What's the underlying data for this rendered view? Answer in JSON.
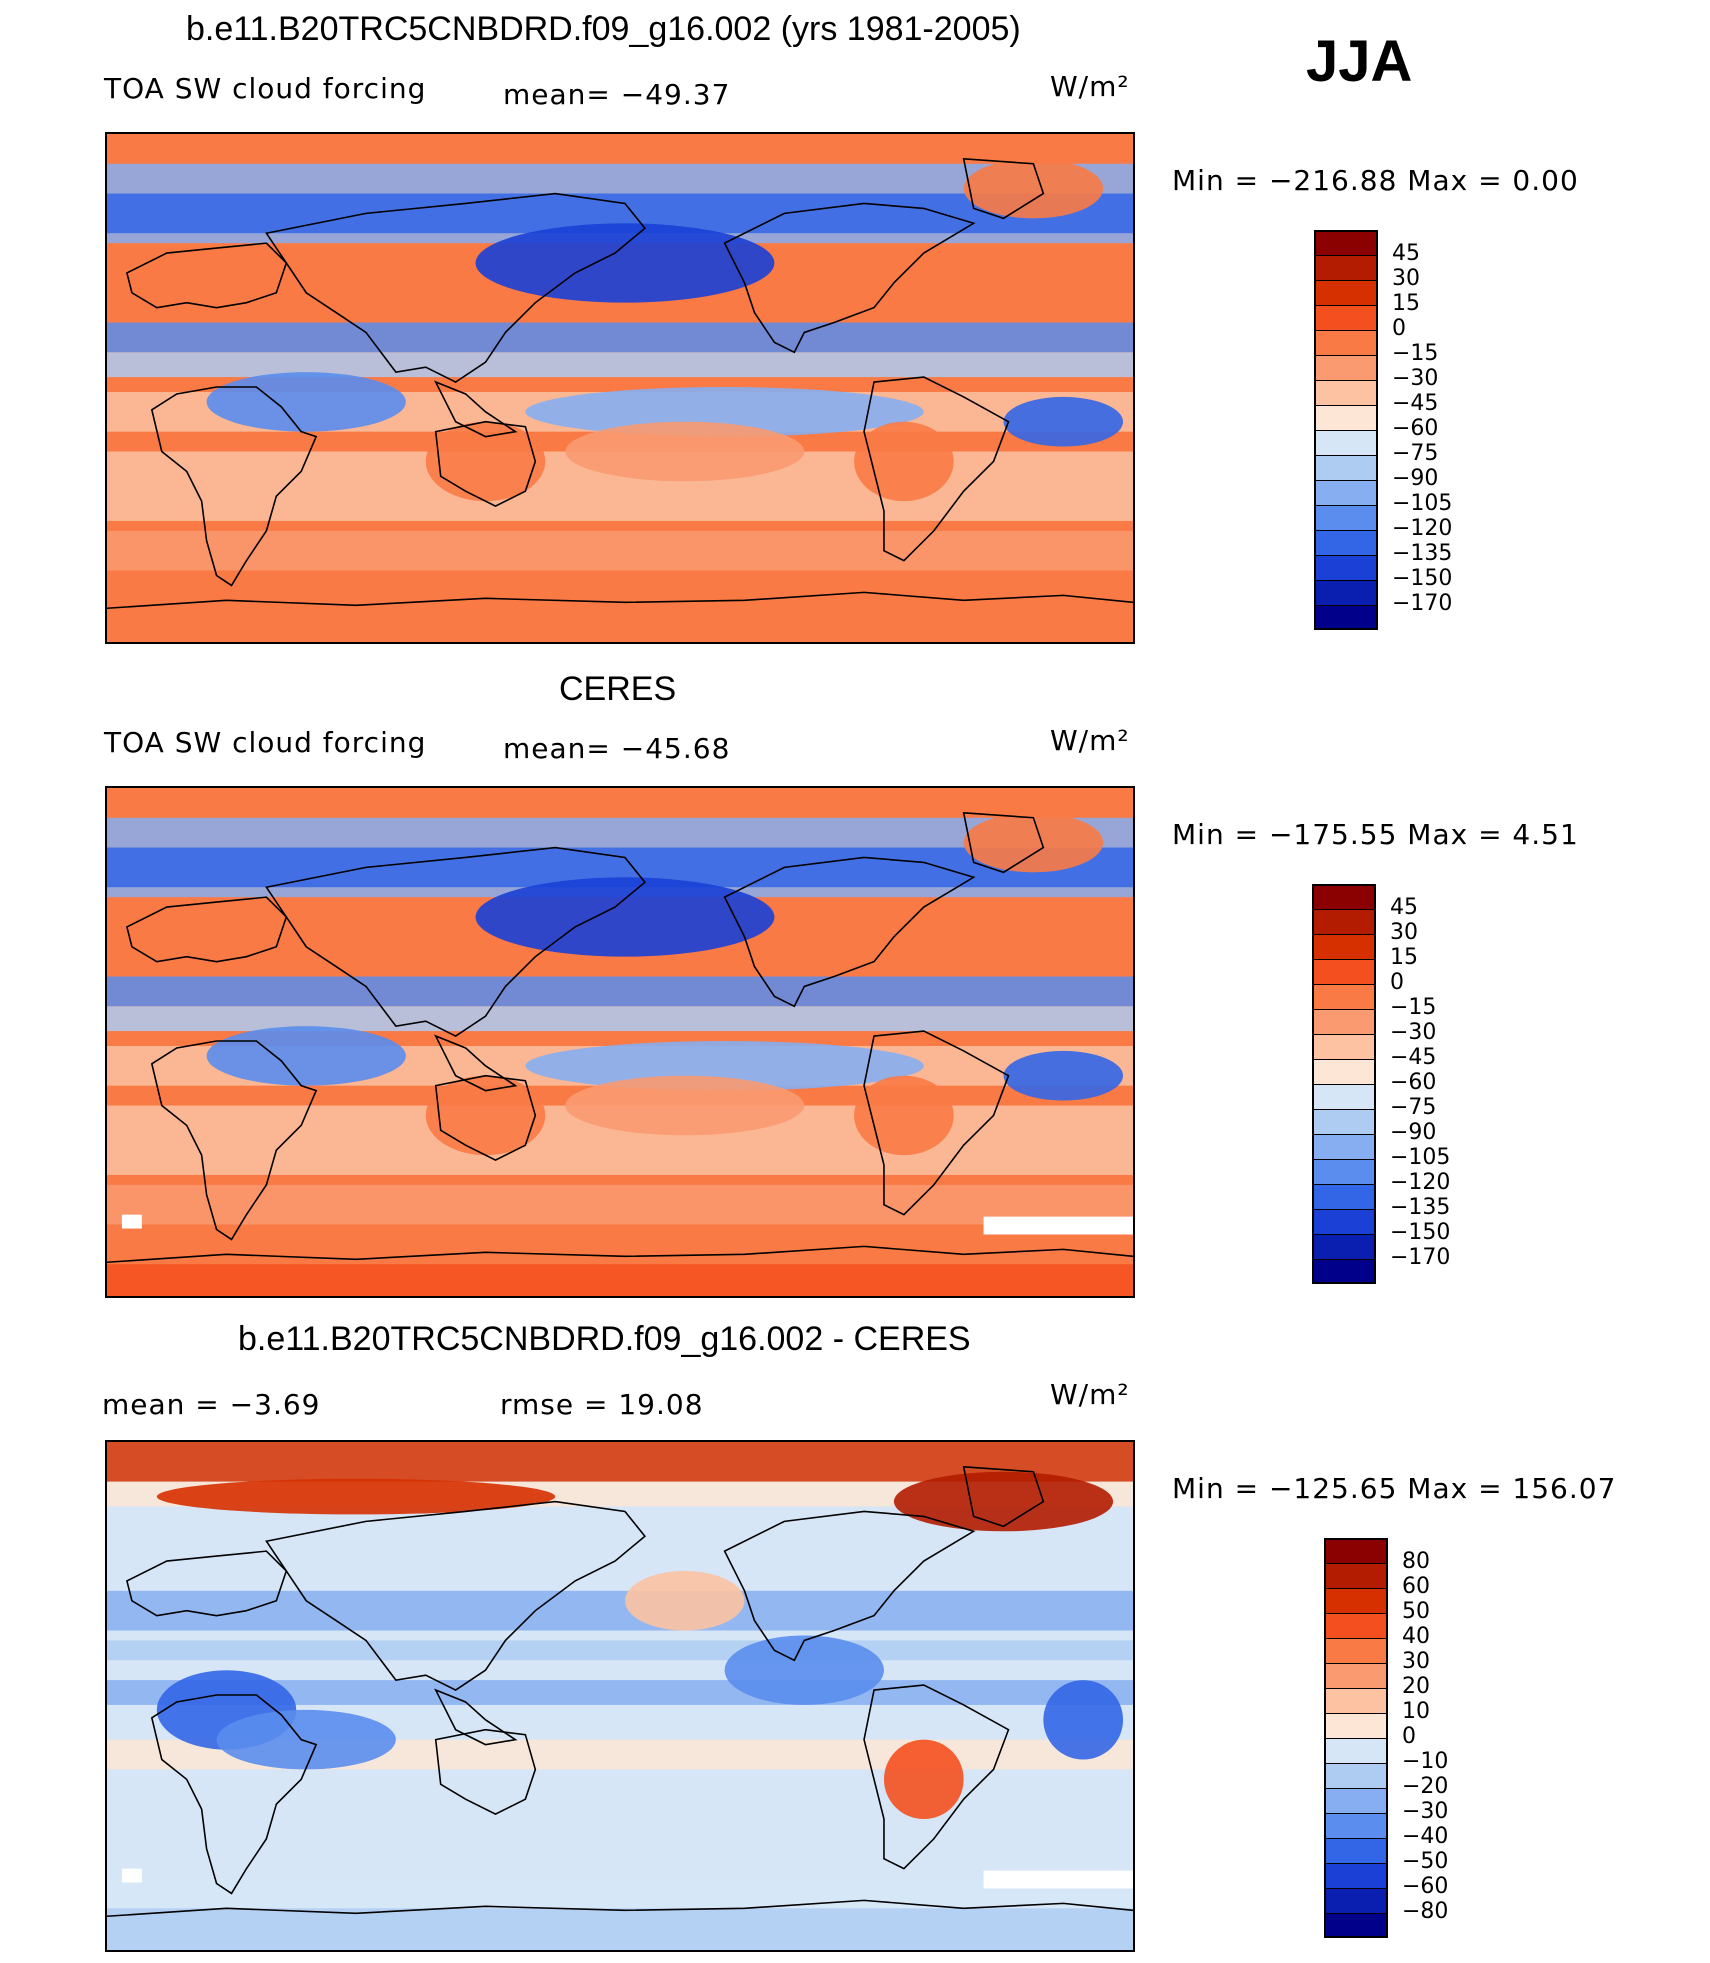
{
  "season": "JJA",
  "panels": [
    {
      "title": "b.e11.B20TRC5CNBDRD.f09_g16.002 (yrs 1981-2005)",
      "variable": "TOA SW cloud forcing",
      "stat_left": "",
      "mean": "mean= −49.37",
      "units": "W/m²",
      "minmax": "Min = −216.88 Max =    0.00",
      "map_kind": "model",
      "colorbar": {
        "labels": [
          "45",
          "30",
          "15",
          "0",
          "−15",
          "−30",
          "−45",
          "−60",
          "−75",
          "−90",
          "−105",
          "−120",
          "−135",
          "−150",
          "−170"
        ],
        "colors": [
          "#8b0000",
          "#b31c00",
          "#d63000",
          "#f4501f",
          "#f97a45",
          "#fa9a70",
          "#fcc2a2",
          "#fde6d5",
          "#d6e6f7",
          "#aecbf2",
          "#86aef0",
          "#5a8ded",
          "#3366e6",
          "#1a40d6",
          "#0a1fb0",
          "#00008a"
        ]
      }
    },
    {
      "title": "CERES",
      "variable": "TOA SW cloud forcing",
      "stat_left": "",
      "mean": "mean= −45.68",
      "units": "W/m²",
      "minmax": "Min = −175.55 Max =    4.51",
      "map_kind": "obs",
      "colorbar": {
        "labels": [
          "45",
          "30",
          "15",
          "0",
          "−15",
          "−30",
          "−45",
          "−60",
          "−75",
          "−90",
          "−105",
          "−120",
          "−135",
          "−150",
          "−170"
        ],
        "colors": [
          "#8b0000",
          "#b31c00",
          "#d63000",
          "#f4501f",
          "#f97a45",
          "#fa9a70",
          "#fcc2a2",
          "#fde6d5",
          "#d6e6f7",
          "#aecbf2",
          "#86aef0",
          "#5a8ded",
          "#3366e6",
          "#1a40d6",
          "#0a1fb0",
          "#00008a"
        ]
      }
    },
    {
      "title": "b.e11.B20TRC5CNBDRD.f09_g16.002 - CERES",
      "variable": "",
      "stat_left": "mean =   −3.69",
      "mean": "rmse =   19.08",
      "units": "W/m²",
      "minmax": "Min = −125.65 Max = 156.07",
      "map_kind": "diff",
      "colorbar": {
        "labels": [
          "80",
          "60",
          "50",
          "40",
          "30",
          "20",
          "10",
          "0",
          "−10",
          "−20",
          "−30",
          "−40",
          "−50",
          "−60",
          "−80"
        ],
        "colors": [
          "#8b0000",
          "#b31c00",
          "#d63000",
          "#f4501f",
          "#f97a45",
          "#fa9a70",
          "#fcc2a2",
          "#fde6d5",
          "#d6e6f7",
          "#aecbf2",
          "#86aef0",
          "#5a8ded",
          "#3366e6",
          "#1a40d6",
          "#0a1fb0",
          "#00008a"
        ]
      }
    }
  ]
}
